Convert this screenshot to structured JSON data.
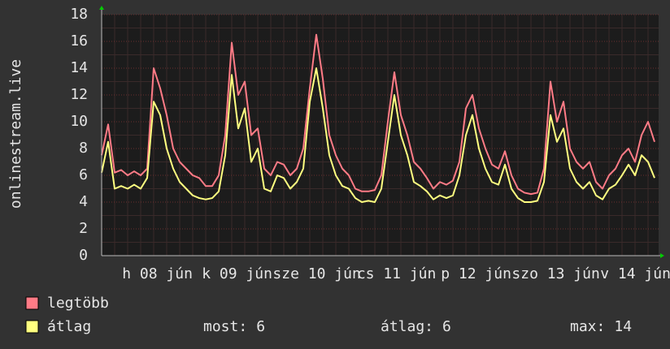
{
  "chart_data": {
    "type": "line",
    "y_label": "onlinestream.live",
    "ylim": [
      0,
      18
    ],
    "yticks": [
      0,
      2,
      4,
      6,
      8,
      10,
      12,
      14,
      16,
      18
    ],
    "grid": true,
    "x_tick_labels": [
      "h 08 jún",
      "k 09 jún",
      "sze 10 jún",
      "cs 11 jún",
      "p 12 jún",
      "szo 13 jún",
      "v 14 jún"
    ],
    "series": [
      {
        "name": "legtöbb",
        "color": "#ff7b86",
        "values": [
          7.5,
          9.8,
          6.2,
          6.4,
          6.0,
          6.3,
          6.0,
          6.5,
          14.0,
          12.5,
          10.5,
          8.0,
          7.0,
          6.5,
          6.0,
          5.8,
          5.2,
          5.2,
          6.0,
          9.0,
          15.9,
          12.0,
          13.0,
          9.0,
          9.5,
          6.5,
          6.0,
          7.0,
          6.8,
          6.0,
          6.5,
          8.0,
          12.5,
          16.5,
          13.2,
          9.0,
          7.5,
          6.5,
          6.0,
          5.0,
          4.8,
          4.8,
          4.9,
          6.0,
          10.0,
          13.7,
          10.5,
          9.0,
          7.0,
          6.5,
          5.8,
          5.0,
          5.5,
          5.3,
          5.6,
          7.0,
          11.0,
          12.0,
          9.5,
          8.0,
          6.8,
          6.5,
          7.8,
          6.0,
          5.0,
          4.7,
          4.6,
          4.7,
          6.5,
          13.0,
          10.0,
          11.5,
          8.0,
          7.0,
          6.5,
          7.0,
          5.5,
          5.0,
          6.0,
          6.5,
          7.5,
          8.0,
          7.0,
          9.0,
          10.0,
          8.5
        ]
      },
      {
        "name": "átlag",
        "color": "#ffff80",
        "values": [
          6.2,
          8.5,
          5.0,
          5.2,
          5.0,
          5.3,
          5.0,
          5.8,
          11.5,
          10.5,
          8.0,
          6.5,
          5.5,
          5.0,
          4.5,
          4.3,
          4.2,
          4.3,
          4.8,
          7.5,
          13.5,
          9.5,
          11.0,
          7.0,
          8.0,
          5.0,
          4.8,
          6.0,
          5.8,
          5.0,
          5.5,
          6.5,
          11.5,
          14.0,
          11.0,
          7.5,
          6.0,
          5.2,
          5.0,
          4.3,
          4.0,
          4.1,
          4.0,
          5.0,
          8.5,
          12.0,
          9.0,
          7.5,
          5.5,
          5.2,
          4.8,
          4.2,
          4.5,
          4.3,
          4.5,
          6.0,
          9.0,
          10.5,
          8.0,
          6.5,
          5.5,
          5.3,
          6.8,
          5.0,
          4.3,
          4.0,
          4.0,
          4.1,
          5.5,
          10.5,
          8.5,
          9.5,
          6.5,
          5.5,
          5.0,
          5.5,
          4.5,
          4.2,
          5.0,
          5.3,
          6.0,
          6.8,
          6.0,
          7.5,
          7.0,
          5.8
        ]
      }
    ],
    "summary": [
      {
        "label": "most:",
        "value": 6
      },
      {
        "label": "átlag:",
        "value": 6
      },
      {
        "label": "max:",
        "value": 14
      }
    ]
  }
}
